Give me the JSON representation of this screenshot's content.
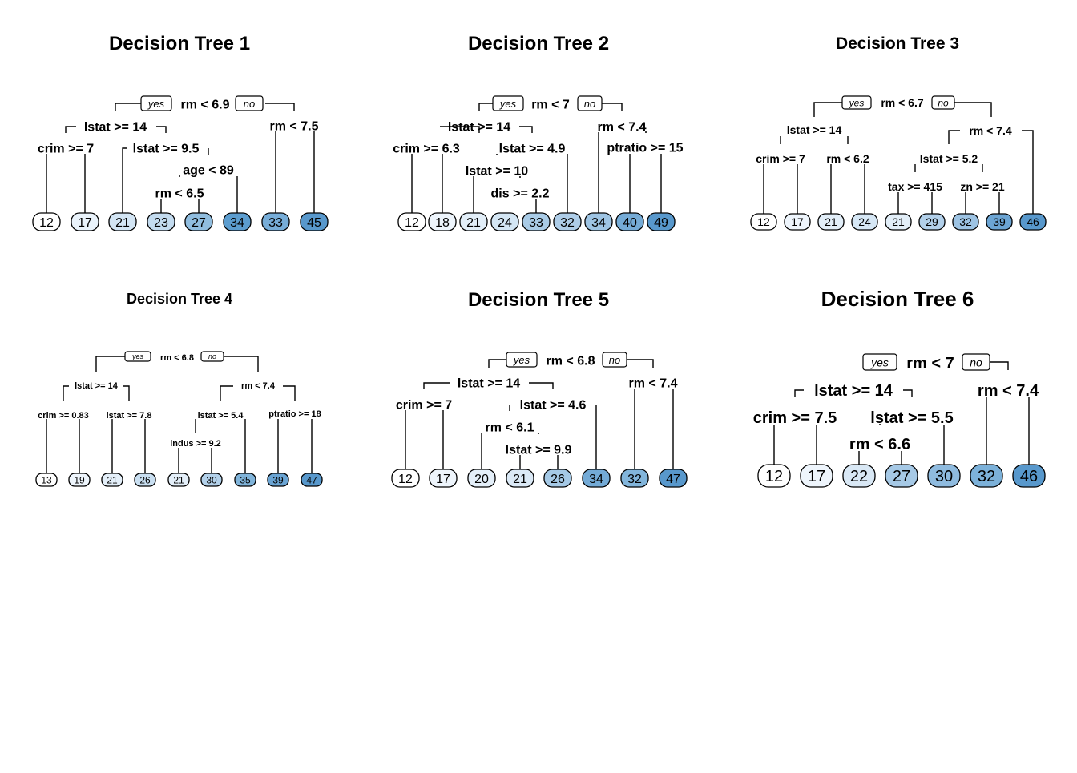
{
  "trees": [
    {
      "title": "Decision Tree 1",
      "yes": "yes",
      "no": "no",
      "splits": [
        "rm < 6.9",
        "lstat >= 14",
        "rm < 7.5",
        "crim >= 7",
        "lstat >= 9.5",
        "age < 89",
        "rm < 6.5"
      ],
      "leaves": [
        "12",
        "17",
        "21",
        "23",
        "27",
        "34",
        "33",
        "45"
      ],
      "leaf_colors": [
        "#ffffff",
        "#eaf3fb",
        "#d3e5f4",
        "#c3dbef",
        "#90bddf",
        "#5c9dcf",
        "#77add8",
        "#5898cc"
      ]
    },
    {
      "title": "Decision Tree 2",
      "yes": "yes",
      "no": "no",
      "splits": [
        "rm < 7",
        "lstat >= 14",
        "rm < 7.4",
        "crim >= 6.3",
        "lstat >= 4.9",
        "ptratio >= 15",
        "lstat >= 10",
        "dis >= 2.2"
      ],
      "leaves": [
        "12",
        "18",
        "21",
        "24",
        "33",
        "32",
        "34",
        "40",
        "49"
      ],
      "leaf_colors": [
        "#ffffff",
        "#eef5fc",
        "#e2eef8",
        "#d4e6f4",
        "#a9cbe6",
        "#aecde8",
        "#9ec4e3",
        "#75abd6",
        "#5898cc"
      ]
    },
    {
      "title": "Decision Tree 3",
      "yes": "yes",
      "no": "no",
      "splits": [
        "rm < 6.7",
        "lstat >= 14",
        "rm < 7.4",
        "crim >= 7",
        "rm < 6.2",
        "lstat >= 5.2",
        "tax >= 415",
        "zn >= 21"
      ],
      "leaves": [
        "12",
        "17",
        "21",
        "24",
        "21",
        "29",
        "32",
        "39",
        "46"
      ],
      "leaf_colors": [
        "#ffffff",
        "#eef5fc",
        "#e2eef8",
        "#d6e7f5",
        "#e2eef8",
        "#b2d0ea",
        "#9dc3e3",
        "#6ca5d4",
        "#5898cc"
      ]
    },
    {
      "title": "Decision Tree 4",
      "yes": "yes",
      "no": "no",
      "splits": [
        "rm < 6.8",
        "lstat >= 14",
        "rm < 7.4",
        "crim >= 0.83",
        "lstat >= 7.8",
        "lstat >= 5.4",
        "ptratio >= 18",
        "indus >= 9.2"
      ],
      "leaves": [
        "13",
        "19",
        "21",
        "26",
        "21",
        "30",
        "35",
        "39",
        "47"
      ],
      "leaf_colors": [
        "#ffffff",
        "#eef5fc",
        "#e4eff9",
        "#c9dff1",
        "#e4eff9",
        "#b3d1ea",
        "#80b4da",
        "#6aa4d3",
        "#5898cc"
      ]
    },
    {
      "title": "Decision Tree 5",
      "yes": "yes",
      "no": "no",
      "splits": [
        "rm < 6.8",
        "lstat >= 14",
        "rm < 7.4",
        "crim >= 7",
        "lstat >= 4.6",
        "rm < 6.1",
        "lstat >= 9.9"
      ],
      "leaves": [
        "12",
        "17",
        "20",
        "21",
        "26",
        "34",
        "32",
        "47"
      ],
      "leaf_colors": [
        "#ffffff",
        "#eef5fc",
        "#e4eff9",
        "#dbe9f6",
        "#a5c9e6",
        "#73aad6",
        "#82b5db",
        "#5898cc"
      ]
    },
    {
      "title": "Decision Tree 6",
      "yes": "yes",
      "no": "no",
      "splits": [
        "rm < 7",
        "lstat >= 14",
        "rm < 7.4",
        "crim >= 7.5",
        "lstat >= 5.5",
        "rm < 6.6"
      ],
      "leaves": [
        "12",
        "17",
        "22",
        "27",
        "30",
        "32",
        "46"
      ],
      "leaf_colors": [
        "#ffffff",
        "#eef5fc",
        "#d9e8f5",
        "#a6c9e6",
        "#8fbbdf",
        "#7cb1d9",
        "#5898cc"
      ]
    }
  ]
}
